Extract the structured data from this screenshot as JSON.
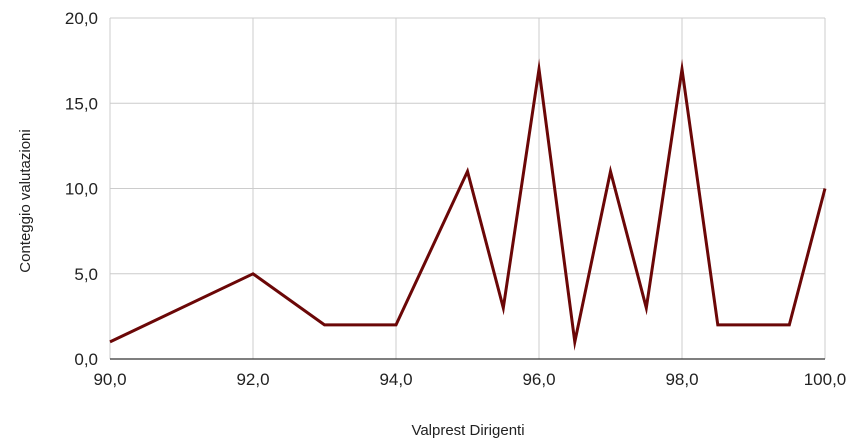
{
  "chart_data": {
    "type": "line",
    "xlabel": "Valprest Dirigenti",
    "ylabel": "Conteggio valutazioni",
    "xlim": [
      90,
      100
    ],
    "ylim": [
      0,
      20
    ],
    "x_ticks": [
      "90,0",
      "92,0",
      "94,0",
      "96,0",
      "98,0",
      "100,0"
    ],
    "y_ticks": [
      "0,0",
      "5,0",
      "10,0",
      "15,0",
      "20,0"
    ],
    "x_tick_values": [
      90,
      92,
      94,
      96,
      98,
      100
    ],
    "y_tick_values": [
      0,
      5,
      10,
      15,
      20
    ],
    "grid": true,
    "series": [
      {
        "color": "#6b0707",
        "x": [
          90,
          92,
          93,
          94,
          95,
          95.5,
          96,
          96.5,
          97,
          97.5,
          98,
          98.5,
          99,
          99.5,
          100
        ],
        "y": [
          1,
          5,
          2,
          2,
          11,
          3,
          17,
          1,
          11,
          3,
          17,
          2,
          2,
          2,
          10
        ]
      }
    ],
    "colors": {
      "grid": "#cccccc",
      "axis": "#333333",
      "text": "#222222"
    }
  }
}
